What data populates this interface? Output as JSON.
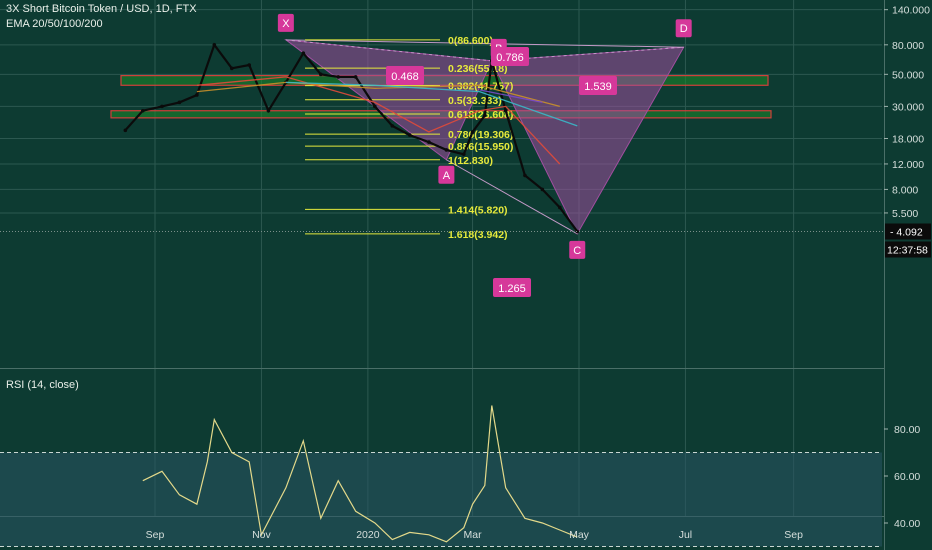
{
  "chart_title": "3X Short Bitcoin Token / USD, 1D, FTX",
  "indicator_label": "EMA 20/50/100/200",
  "rsi_label": "RSI (14, close)",
  "last_price": "4.092",
  "countdown": "12:37:58",
  "colors": {
    "background": "#0d3b32",
    "candles": "#0b0b0b",
    "fib_line": "#e6ea3c",
    "pattern_fill": "#a24ea0",
    "marker": "#d6389a",
    "zone_fill": "#1e8a2a",
    "zone_border": "#d0403a",
    "rsi_line": "#e3d98a",
    "rsi_band": "#2a5664",
    "ema20": "#e04a3a",
    "ema50": "#c8902a",
    "ema100": "#3ab8c8",
    "ema200": "#7a4ac8"
  },
  "chart_data": [
    {
      "type": "line",
      "title": "3X Short Bitcoin Token / USD, 1D, FTX",
      "y_scale": "log",
      "y_ticks": [
        "140.000",
        "80.000",
        "50.000",
        "30.000",
        "18.000",
        "12.000",
        "8.000",
        "5.500"
      ],
      "x_ticks": [
        "Sep",
        "Nov",
        "2020",
        "Mar",
        "May",
        "Jul",
        "Sep"
      ],
      "grid": true,
      "series": [
        {
          "name": "3X Short Bitcoin Token / USD",
          "x": [
            "2019-08-15",
            "2019-08-25",
            "2019-09-05",
            "2019-09-15",
            "2019-09-25",
            "2019-10-05",
            "2019-10-15",
            "2019-10-25",
            "2019-11-05",
            "2019-11-15",
            "2019-11-25",
            "2019-12-05",
            "2019-12-15",
            "2019-12-25",
            "2020-01-05",
            "2020-01-15",
            "2020-01-25",
            "2020-02-05",
            "2020-02-15",
            "2020-02-25",
            "2020-03-01",
            "2020-03-08",
            "2020-03-12",
            "2020-03-20",
            "2020-03-31",
            "2020-04-10",
            "2020-04-20",
            "2020-04-30"
          ],
          "values": [
            20.5,
            28,
            30,
            32,
            36,
            80,
            55,
            58,
            28,
            44,
            70,
            50,
            48,
            48,
            30,
            22,
            19,
            17,
            15,
            14,
            20,
            26,
            62,
            28,
            10,
            8,
            6,
            4.09
          ]
        },
        {
          "name": "EMA 20",
          "x": [
            "2019-09-25",
            "2019-11-15",
            "2020-01-05",
            "2020-02-05",
            "2020-03-05",
            "2020-03-20",
            "2020-04-20"
          ],
          "values": [
            42,
            48,
            32,
            20,
            28,
            30,
            12
          ]
        },
        {
          "name": "EMA 50",
          "x": [
            "2019-09-25",
            "2019-11-15",
            "2020-01-05",
            "2020-03-05",
            "2020-04-20"
          ],
          "values": [
            38,
            44,
            40,
            42,
            30
          ]
        },
        {
          "name": "EMA 100",
          "x": [
            "2019-11-15",
            "2020-01-05",
            "2020-03-05",
            "2020-04-30"
          ],
          "values": [
            44,
            42,
            38,
            22
          ]
        },
        {
          "name": "EMA 200",
          "x": [
            "2020-03-05",
            "2020-04-10"
          ],
          "values": [
            39,
            32
          ]
        }
      ],
      "harmonic_points": [
        {
          "label": "X",
          "x": "2019-11-15",
          "value": 86.6
        },
        {
          "label": "A",
          "x": "2020-02-15",
          "value": 12.83
        },
        {
          "label": "B",
          "x": "2020-03-12",
          "value": 62
        },
        {
          "label": "C",
          "x": "2020-04-30",
          "value": 3.942
        },
        {
          "label": "D",
          "x": "2020-06-30",
          "value": 77
        }
      ],
      "ratio_labels": [
        "0.468",
        "0.786",
        "1.539",
        "1.265"
      ],
      "fib_levels": [
        {
          "ratio": "0",
          "value": "86.600"
        },
        {
          "ratio": "0.236",
          "value": "55.18"
        },
        {
          "ratio": "0.382",
          "value": "41.757"
        },
        {
          "ratio": "0.5",
          "value": "33.333"
        },
        {
          "ratio": "0.618",
          "value": "26.608"
        },
        {
          "ratio": "0.786",
          "value": "19.306"
        },
        {
          "ratio": "0.886",
          "value": "15.950"
        },
        {
          "ratio": "1",
          "value": "12.830"
        },
        {
          "ratio": "1.414",
          "value": "5.820"
        },
        {
          "ratio": "1.618",
          "value": "3.942"
        }
      ],
      "zones": [
        {
          "from": 42,
          "to": 49
        },
        {
          "from": 25,
          "to": 28
        }
      ]
    },
    {
      "type": "line",
      "title": "RSI (14, close)",
      "y_ticks": [
        "80.00",
        "60.00",
        "40.00"
      ],
      "ylim": [
        25,
        95
      ],
      "bands": [
        30,
        70
      ],
      "series": [
        {
          "name": "RSI",
          "x": [
            "2019-08-25",
            "2019-09-05",
            "2019-09-15",
            "2019-09-25",
            "2019-10-01",
            "2019-10-05",
            "2019-10-15",
            "2019-10-25",
            "2019-11-01",
            "2019-11-15",
            "2019-11-25",
            "2019-12-05",
            "2019-12-15",
            "2019-12-25",
            "2020-01-05",
            "2020-01-15",
            "2020-01-25",
            "2020-02-05",
            "2020-02-15",
            "2020-02-25",
            "2020-03-01",
            "2020-03-08",
            "2020-03-12",
            "2020-03-20",
            "2020-03-31",
            "2020-04-10",
            "2020-04-20",
            "2020-04-30"
          ],
          "values": [
            58,
            62,
            52,
            48,
            66,
            84,
            70,
            66,
            35,
            55,
            75,
            42,
            58,
            45,
            40,
            33,
            36,
            35,
            32,
            38,
            48,
            56,
            90,
            55,
            42,
            40,
            37,
            34
          ]
        }
      ]
    }
  ]
}
